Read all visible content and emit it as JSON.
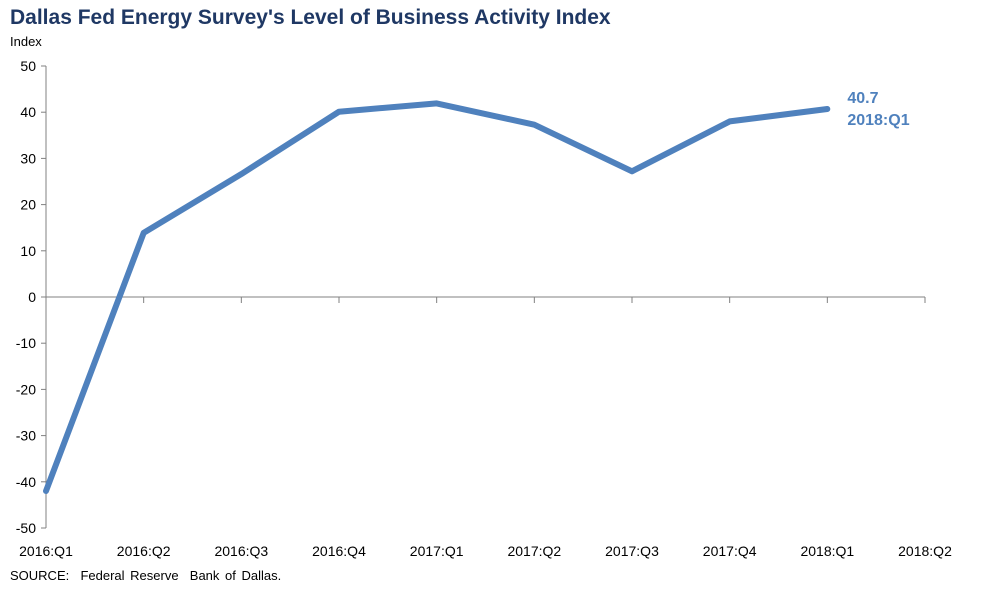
{
  "chart_data": {
    "type": "line",
    "title": "Dallas Fed Energy Survey's Level of Business Activity Index",
    "ylabel": "Index",
    "xlabel": "",
    "categories": [
      "2016:Q1",
      "2016:Q2",
      "2016:Q3",
      "2016:Q4",
      "2017:Q1",
      "2017:Q2",
      "2017:Q3",
      "2017:Q4",
      "2018:Q1",
      "2018:Q2"
    ],
    "series": [
      {
        "name": "",
        "values": [
          -42.0,
          13.9,
          26.6,
          40.1,
          41.9,
          37.3,
          27.2,
          38.0,
          40.7,
          null
        ]
      }
    ],
    "ylim": [
      -50,
      50
    ],
    "yticks": [
      -50,
      -40,
      -30,
      -20,
      -10,
      0,
      10,
      20,
      30,
      40,
      50
    ],
    "grid": false,
    "legend": "none",
    "annotation": {
      "value": "40.7",
      "period": "2018:Q1"
    },
    "source": "SOURCE:  Federal Reserve  Bank of Dallas."
  },
  "colors": {
    "line": "#4f81bd",
    "title": "#1f3864",
    "annotation": "#4f81bd",
    "axis": "#808080"
  }
}
